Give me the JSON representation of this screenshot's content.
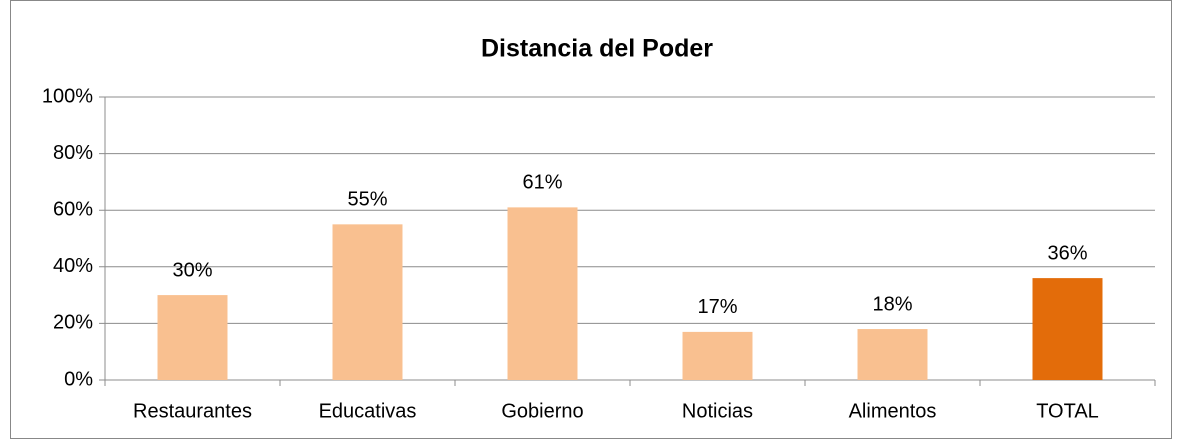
{
  "chart_data": {
    "type": "bar",
    "title": "Distancia del Poder",
    "categories": [
      "Restaurantes",
      "Educativas",
      "Gobierno",
      "Noticias",
      "Alimentos",
      "TOTAL"
    ],
    "values": [
      30,
      55,
      61,
      17,
      18,
      36
    ],
    "value_labels": [
      "30%",
      "55%",
      "61%",
      "17%",
      "18%",
      "36%"
    ],
    "colors": [
      "#f9c090",
      "#f9c090",
      "#f9c090",
      "#f9c090",
      "#f9c090",
      "#e36c0a"
    ],
    "ylim": [
      0,
      100
    ],
    "yticks": [
      {
        "value": 0,
        "label": "0%"
      },
      {
        "value": 20,
        "label": "20%"
      },
      {
        "value": 40,
        "label": "40%"
      },
      {
        "value": 60,
        "label": "60%"
      },
      {
        "value": 80,
        "label": "80%"
      },
      {
        "value": 100,
        "label": "100%"
      }
    ],
    "grid": true
  }
}
